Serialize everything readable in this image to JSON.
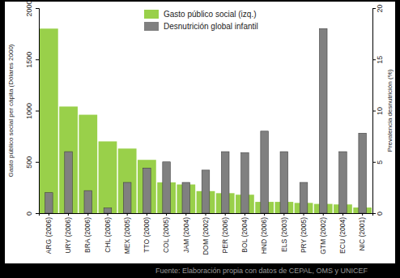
{
  "chart_data": {
    "type": "bar",
    "categories": [
      "ARG (2006)",
      "URY (2006)",
      "BRA (2006)",
      "CHL (2006)",
      "MEX (2005)",
      "TTO (2000)",
      "COL (2005)",
      "JAM (2004)",
      "DOM (2002)",
      "PER (2006)",
      "BOL (2004)",
      "HND (2006)",
      "ELS (2003)",
      "PRY (2005)",
      "GTM (2002)",
      "ECU (2004)",
      "NIC (2001)"
    ],
    "series": [
      {
        "name": "Gasto público social (izq.)",
        "color": "#99d04a",
        "values": [
          1800,
          1040,
          960,
          700,
          630,
          520,
          300,
          280,
          215,
          195,
          180,
          110,
          110,
          100,
          90,
          85,
          55
        ]
      },
      {
        "name": "Desnutrición global infantil",
        "color": "#808080",
        "axis": "y2",
        "values": [
          2,
          6,
          2.2,
          0.5,
          3,
          4.4,
          5,
          3,
          4.2,
          6,
          5.9,
          8,
          6,
          3,
          18,
          6,
          7.8
        ]
      }
    ],
    "y_label": "Gasto público social per cápita (Dólares 2000)",
    "y2_label": "Prevalencia desnutrición (%)",
    "source": "Fuente: Elaboración propia con datos de CEPAL, OMS y UNICEF",
    "ylim": [
      0,
      2000
    ],
    "yticks": [
      0,
      500,
      1000,
      1500,
      2000
    ],
    "y2lim": [
      0,
      20
    ],
    "y2ticks": [
      0,
      5,
      10,
      15,
      20
    ],
    "legend": "top",
    "grid": false
  }
}
